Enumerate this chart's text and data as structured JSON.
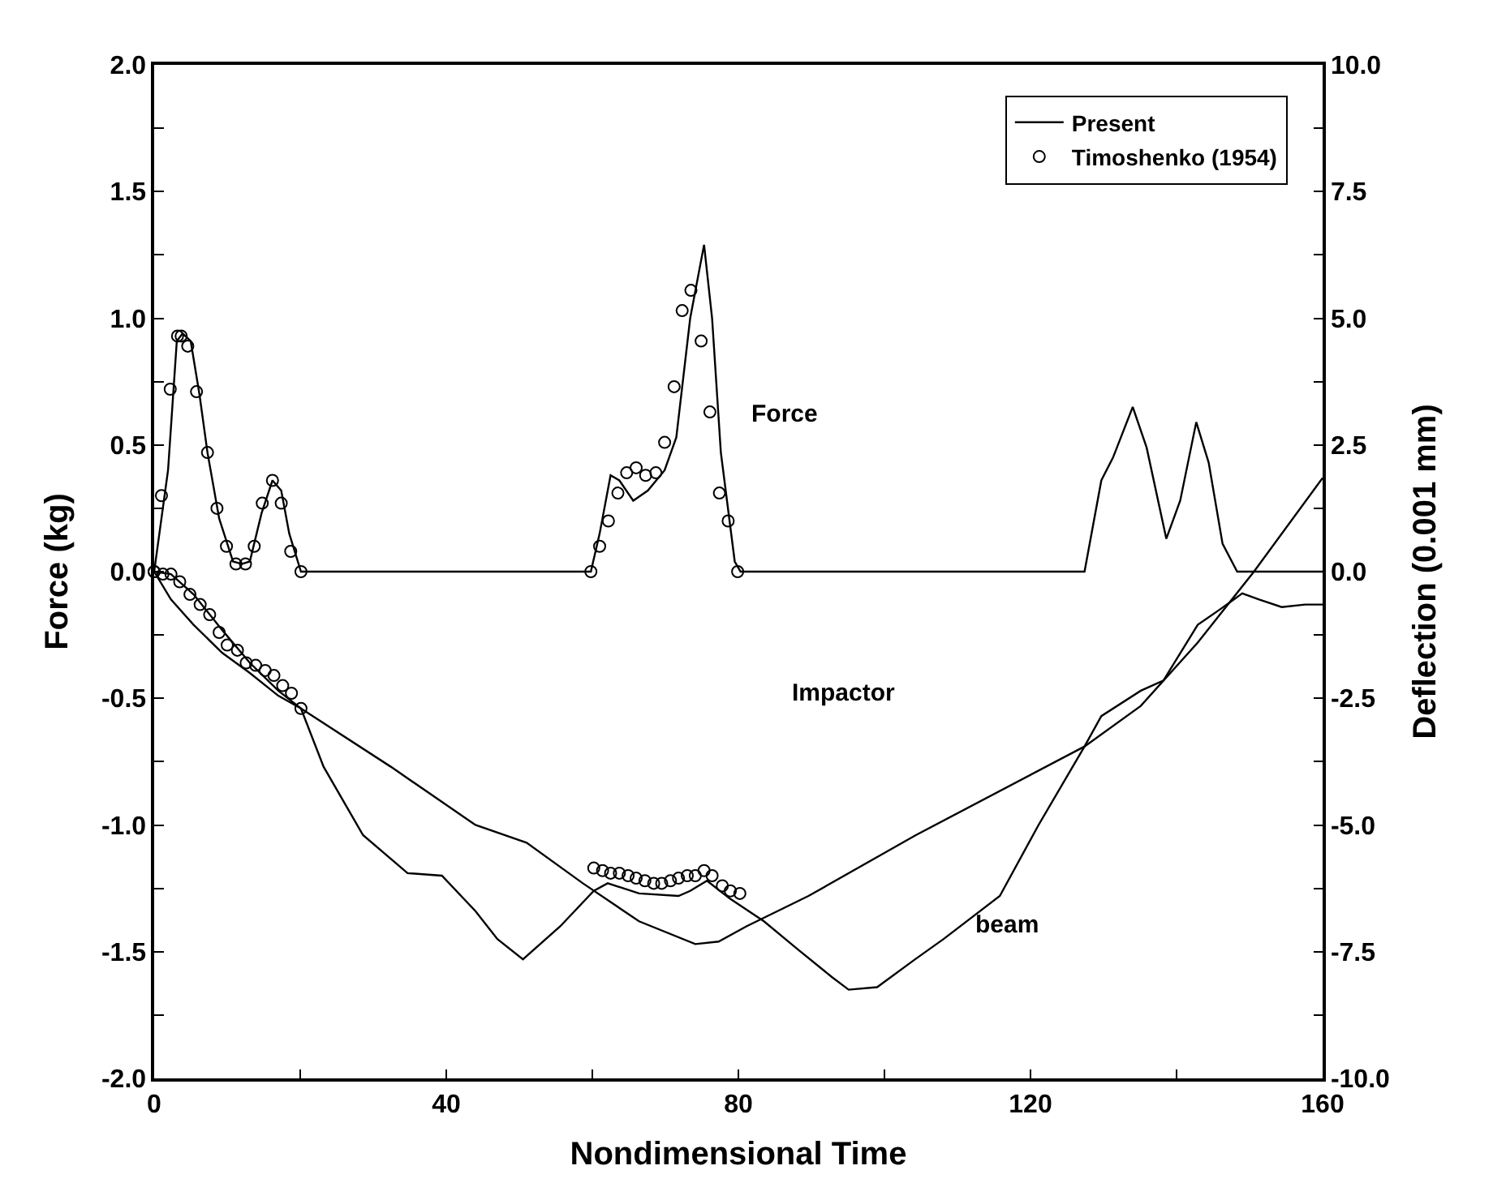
{
  "chart_data": {
    "type": "line",
    "xlabel": "Nondimensional Time",
    "ylabel": "Force (kg)",
    "y2label": "Deflection (0.001 mm)",
    "xlim": [
      0,
      160
    ],
    "xticks": [
      0,
      {
        "value": 20,
        "label": null
      },
      40,
      {
        "value": 60,
        "label": null
      },
      80,
      {
        "value": 100,
        "label": null
      },
      120,
      {
        "value": 140,
        "label": null
      },
      160
    ],
    "ylim": [
      -2,
      2
    ],
    "yticks": [
      {
        "value": -2,
        "label": "-2.0"
      },
      {
        "value": -1.75,
        "label": null
      },
      {
        "value": -1.5,
        "label": "-1.5"
      },
      {
        "value": -1.25,
        "label": null
      },
      {
        "value": -1,
        "label": "-1.0"
      },
      {
        "value": -0.75,
        "label": null
      },
      {
        "value": -0.5,
        "label": "-0.5"
      },
      {
        "value": -0.25,
        "label": null
      },
      {
        "value": 0,
        "label": "0.0"
      },
      {
        "value": 0.25,
        "label": null
      },
      {
        "value": 0.5,
        "label": "0.5"
      },
      {
        "value": 0.75,
        "label": null
      },
      {
        "value": 1,
        "label": "1.0"
      },
      {
        "value": 1.25,
        "label": null
      },
      {
        "value": 1.5,
        "label": "1.5"
      },
      {
        "value": 1.75,
        "label": null
      },
      {
        "value": 2,
        "label": "2.0"
      }
    ],
    "y2lim": [
      -10,
      10
    ],
    "y2ticks": [
      {
        "value": -10,
        "label": "-10.0"
      },
      {
        "value": -8.75,
        "label": null
      },
      {
        "value": -7.5,
        "label": "-7.5"
      },
      {
        "value": -6.25,
        "label": null
      },
      {
        "value": -5,
        "label": "-5.0"
      },
      {
        "value": -3.75,
        "label": null
      },
      {
        "value": -2.5,
        "label": "-2.5"
      },
      {
        "value": -1.25,
        "label": null
      },
      {
        "value": 0,
        "label": "0.0"
      },
      {
        "value": 1.25,
        "label": null
      },
      {
        "value": 2.5,
        "label": "2.5"
      },
      {
        "value": 3.75,
        "label": null
      },
      {
        "value": 5,
        "label": "5.0"
      },
      {
        "value": 6.25,
        "label": null
      },
      {
        "value": 7.5,
        "label": "7.5"
      },
      {
        "value": 8.75,
        "label": null
      },
      {
        "value": 10,
        "label": "10.0"
      }
    ],
    "legend": "top right",
    "series": [
      {
        "name": "Present",
        "color": "#000000",
        "x": [
          0,
          1.9,
          3.1,
          3.9,
          5.0,
          6.2,
          7.3,
          8.9,
          10.8,
          12.0,
          13.1,
          14.7,
          16.2,
          17.4,
          18.5,
          20.1,
          59.8,
          61,
          62.5,
          63.7,
          65.6,
          67.6,
          69.9,
          71.5,
          73.4,
          75.3,
          76.4,
          77.6,
          79.5,
          80.3,
          127.4,
          129.7,
          131.3,
          134,
          135.9,
          138.6,
          140.5,
          142.7,
          144.4,
          146.3,
          148.3,
          160
        ],
        "values": [
          0,
          0.4,
          0.91,
          0.94,
          0.91,
          0.7,
          0.47,
          0.21,
          0.04,
          0.03,
          0.04,
          0.23,
          0.36,
          0.32,
          0.15,
          0,
          0,
          0.15,
          0.38,
          0.36,
          0.28,
          0.32,
          0.4,
          0.53,
          1.0,
          1.29,
          1.0,
          0.47,
          0.04,
          0,
          0,
          0.36,
          0.45,
          0.65,
          0.49,
          0.13,
          0.28,
          0.59,
          0.43,
          0.11,
          0,
          0
        ]
      },
      {
        "name": "Timoshenko (1954)",
        "type": "scatter",
        "marker": "circle",
        "color": "#000000",
        "x": [
          0,
          1.0,
          2.2,
          3.2,
          3.7,
          4.6,
          5.8,
          7.3,
          8.6,
          9.9,
          11.2,
          12.5,
          13.7,
          14.8,
          16.2,
          17.4,
          18.7,
          20.1,
          59.8,
          61,
          62.2,
          63.5,
          64.7,
          66.0,
          67.3,
          68.7,
          69.9,
          71.2,
          72.3,
          73.5,
          74.9,
          76.1,
          77.4,
          78.6,
          79.9
        ],
        "values": [
          0,
          0.3,
          0.72,
          0.93,
          0.93,
          0.89,
          0.71,
          0.47,
          0.25,
          0.1,
          0.03,
          0.03,
          0.1,
          0.27,
          0.36,
          0.27,
          0.08,
          0,
          0,
          0.1,
          0.2,
          0.31,
          0.39,
          0.41,
          0.38,
          0.39,
          0.51,
          0.73,
          1.03,
          1.11,
          0.91,
          0.63,
          0.31,
          0.2,
          0
        ]
      },
      {
        "axis": "y2",
        "color": "#000000",
        "x": [
          0,
          2.3,
          5.4,
          9.3,
          13.1,
          17,
          20.1,
          32.4,
          44,
          51,
          58.7,
          66.4,
          74.1,
          77.3,
          81.1,
          89.6,
          104.3,
          127.4,
          135.1,
          142.9,
          150.6,
          160
        ],
        "values": [
          0,
          -0.55,
          -1.05,
          -1.6,
          -2.0,
          -2.45,
          -2.7,
          -3.85,
          -5.0,
          -5.35,
          -6.15,
          -6.9,
          -7.35,
          -7.3,
          -7.0,
          -6.4,
          -5.2,
          -3.45,
          -2.65,
          -1.4,
          0,
          1.85
        ]
      },
      {
        "axis": "y2",
        "color": "#000000",
        "x": [
          0,
          2.3,
          5.4,
          9.3,
          13.1,
          17,
          20.1,
          23.2,
          28.6,
          34.7,
          39.4,
          44,
          47,
          50.5,
          55.6,
          60.2,
          62.1,
          66.4,
          71.8,
          73.4,
          75.7,
          78.8,
          83.5,
          88.1,
          92.8,
          95.1,
          99,
          104.2,
          108.1,
          115.8,
          121.1,
          127.4,
          129.7,
          135.1,
          138.2,
          142.9,
          145.9,
          149,
          151.3,
          154.4,
          157.6,
          160
        ],
        "values": [
          0,
          -0.05,
          -0.45,
          -1.15,
          -1.8,
          -2.35,
          -2.7,
          -3.85,
          -5.2,
          -5.95,
          -6.0,
          -6.7,
          -7.25,
          -7.65,
          -7.0,
          -6.3,
          -6.15,
          -6.35,
          -6.4,
          -6.3,
          -6.1,
          -6.45,
          -6.9,
          -7.45,
          -8.0,
          -8.25,
          -8.2,
          -7.65,
          -7.25,
          -6.4,
          -5.0,
          -3.45,
          -2.85,
          -2.35,
          -2.15,
          -1.05,
          -0.75,
          -0.43,
          -0.55,
          -0.7,
          -0.65,
          -0.65
        ]
      },
      {
        "type": "scatter",
        "axis": "y2",
        "marker": "circle",
        "color": "#000000",
        "x": [
          0,
          1.2,
          2.3,
          3.5,
          4.9,
          6.3,
          7.6,
          8.9,
          10,
          11.4,
          12.6,
          13.9,
          15.2,
          16.4,
          17.6,
          18.8,
          20.1,
          60.2,
          61.4,
          62.5,
          63.7,
          64.9,
          66,
          67.2,
          68.4,
          69.5,
          70.7,
          71.8,
          73,
          74.1,
          75.3,
          76.4,
          77.8,
          78.9,
          80.2
        ],
        "values": [
          0,
          -0.05,
          -0.05,
          -0.2,
          -0.45,
          -0.65,
          -0.85,
          -1.2,
          -1.45,
          -1.55,
          -1.8,
          -1.85,
          -1.95,
          -2.05,
          -2.25,
          -2.4,
          -2.7,
          -5.85,
          -5.9,
          -5.95,
          -5.95,
          -6.0,
          -6.05,
          -6.1,
          -6.15,
          -6.15,
          -6.1,
          -6.05,
          -6.0,
          -6.0,
          -5.9,
          -6.0,
          -6.2,
          -6.3,
          -6.35
        ]
      }
    ],
    "annotations": [
      "Force",
      "Impactor",
      "beam"
    ]
  }
}
